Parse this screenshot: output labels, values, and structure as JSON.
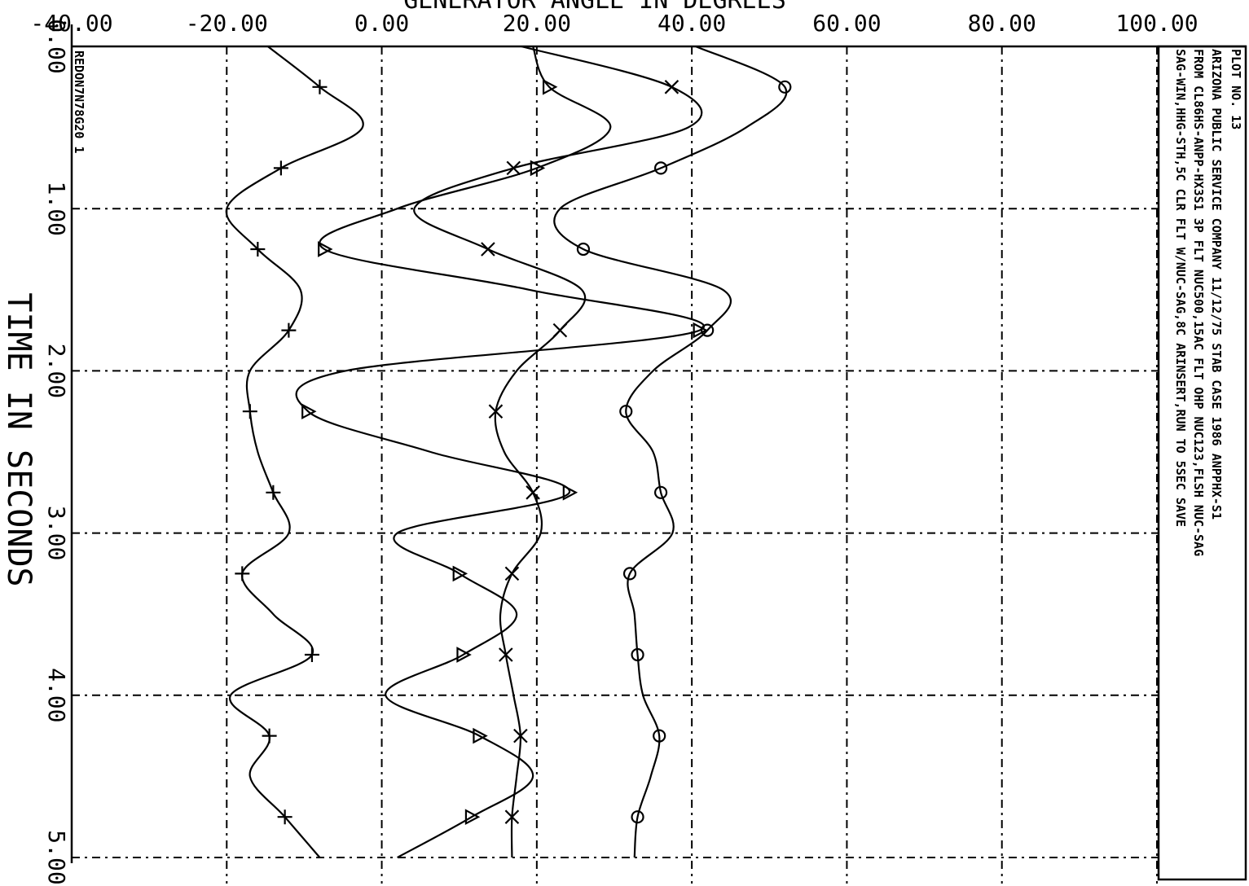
{
  "chart_data": {
    "type": "line",
    "title": "GENERATOR ANGLE IN DEGREES",
    "x_label": "TIME IN SECONDS",
    "x": [
      0,
      0.25,
      0.5,
      0.75,
      1.0,
      1.25,
      1.5,
      1.75,
      2.0,
      2.25,
      2.5,
      2.75,
      3.0,
      3.25,
      3.5,
      3.75,
      4.0,
      4.25,
      4.5,
      4.75,
      5.0
    ],
    "xlim": [
      0,
      5
    ],
    "xticks": [
      {
        "value": 0,
        "label": "0.00"
      },
      {
        "value": 1,
        "label": "1.00"
      },
      {
        "value": 2,
        "label": "2.00"
      },
      {
        "value": 3,
        "label": "3.00"
      },
      {
        "value": 4,
        "label": "4.00"
      },
      {
        "value": 5,
        "label": "5.00"
      }
    ],
    "ylim": [
      -40,
      100
    ],
    "yticks": [
      {
        "value": -40,
        "label": "-40.00"
      },
      {
        "value": -20,
        "label": "-20.00"
      },
      {
        "value": 0,
        "label": "0.00"
      },
      {
        "value": 20,
        "label": "20.00"
      },
      {
        "value": 40,
        "label": "40.00"
      },
      {
        "value": 60,
        "label": "60.00"
      },
      {
        "value": 80,
        "label": "80.00"
      },
      {
        "value": 100,
        "label": "100.00"
      }
    ],
    "grid": true,
    "series": [
      {
        "marker": "plus",
        "color": "#000000",
        "values": [
          -14.7,
          -8,
          -2.5,
          -13,
          -20,
          -16,
          -10.5,
          -12,
          -17,
          -17,
          -16,
          -14,
          -12,
          -18,
          -14,
          -9,
          -19.5,
          -14.5,
          -17,
          -12.5,
          -8
        ]
      },
      {
        "marker": "triangle",
        "color": "#000000",
        "values": [
          19.5,
          21.6,
          29.5,
          20,
          2,
          -7.4,
          19,
          41,
          -4.7,
          -9.5,
          6.3,
          24.2,
          2,
          10,
          17.4,
          10.5,
          0.5,
          12.6,
          19.5,
          11.6,
          2
        ]
      },
      {
        "marker": "cross",
        "color": "#000000",
        "values": [
          18,
          37.4,
          39.5,
          17,
          4.2,
          13.7,
          25.8,
          23,
          17.4,
          14.7,
          15.8,
          19.5,
          20.5,
          16.8,
          15.3,
          16,
          17,
          17.9,
          17.4,
          16.8,
          16.8
        ]
      },
      {
        "marker": "circle",
        "color": "#000000",
        "values": [
          40.5,
          52,
          47,
          36,
          23,
          26,
          44,
          42,
          35,
          31.5,
          35,
          36,
          37.5,
          32,
          32.6,
          33,
          33.7,
          35.8,
          34.7,
          33,
          32.6
        ]
      }
    ],
    "run_label": "REDON7N78G20 1",
    "notes": [
      "PLOT NO. 13",
      "ARIZONA PUBLIC SERVICE COMPANY     11/12/75     STAB CASE 1986 ANPPHX-S1",
      "FROM CL86HS-ANPP-HX3S1   3P FLT NUC500,15AC FLT OHP NUC123,FLSH NUC-SAG",
      "SAG-WIN,HHG-STH,5C CLR FLT W/NUC-SAG,8C ARINSERT,RUN TO 5SEC SAVE"
    ]
  }
}
